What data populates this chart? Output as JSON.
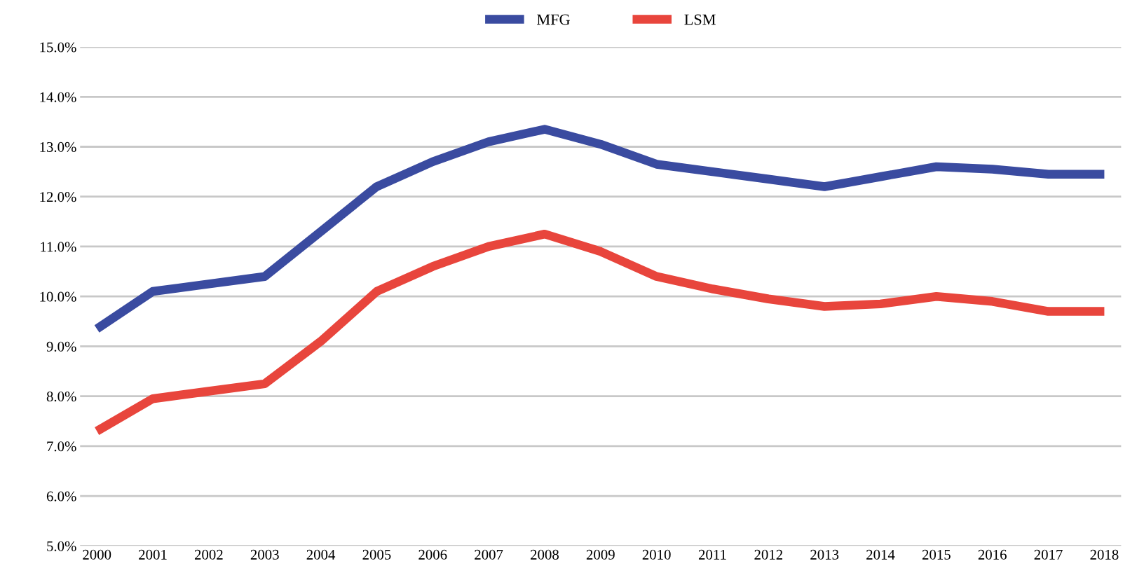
{
  "chart_data": {
    "type": "line",
    "categories": [
      "2000",
      "2001",
      "2002",
      "2003",
      "2004",
      "2005",
      "2006",
      "2007",
      "2008",
      "2009",
      "2010",
      "2011",
      "2012",
      "2013",
      "2014",
      "2015",
      "2016",
      "2017",
      "2018"
    ],
    "series": [
      {
        "name": "MFG",
        "color": "#3a4ba0",
        "values": [
          9.35,
          10.1,
          10.25,
          10.4,
          11.3,
          12.2,
          12.7,
          13.1,
          13.35,
          13.05,
          12.65,
          12.5,
          12.35,
          12.2,
          12.4,
          12.6,
          12.55,
          12.45,
          12.45
        ]
      },
      {
        "name": "LSM",
        "color": "#e8453c",
        "values": [
          7.3,
          7.95,
          8.1,
          8.25,
          9.1,
          10.1,
          10.6,
          11.0,
          11.25,
          10.9,
          10.4,
          10.15,
          9.95,
          9.8,
          9.85,
          10.0,
          9.9,
          9.7,
          9.7
        ]
      }
    ],
    "ylim": [
      5,
      15
    ],
    "yticks": [
      {
        "value": 5,
        "label": "5.0%"
      },
      {
        "value": 6,
        "label": "6.0%"
      },
      {
        "value": 7,
        "label": "7.0%"
      },
      {
        "value": 8,
        "label": "8.0%"
      },
      {
        "value": 9,
        "label": "9.0%"
      },
      {
        "value": 10,
        "label": "10.0%"
      },
      {
        "value": 11,
        "label": "11.0%"
      },
      {
        "value": 12,
        "label": "12.0%"
      },
      {
        "value": 13,
        "label": "13.0%"
      },
      {
        "value": 14,
        "label": "14.0%"
      },
      {
        "value": 15,
        "label": "15.0%"
      }
    ],
    "grid": "y",
    "legend": "top",
    "marker": "none",
    "line_style": "solid"
  }
}
